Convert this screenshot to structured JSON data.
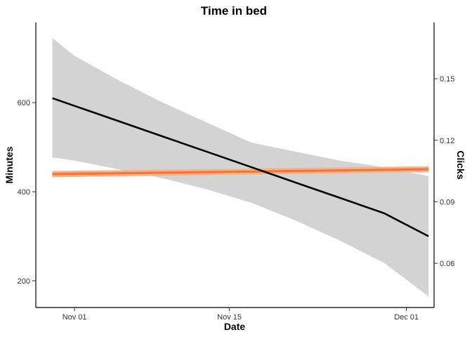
{
  "chart_data": {
    "type": "line",
    "title": "Time in bed",
    "xlabel": "Date",
    "ylabel": "Minutes",
    "y2label": "Clicks",
    "x_ticks": [
      "Nov 01",
      "Nov 15",
      "Dec 01"
    ],
    "x_tick_days": [
      0,
      14,
      30
    ],
    "xlim_days": [
      -3.5,
      32.5
    ],
    "ylim": [
      140,
      780
    ],
    "y_ticks": [
      200,
      400,
      600
    ],
    "y2lim": [
      0.0385,
      0.1774
    ],
    "y2_ticks": [
      0.06,
      0.09,
      0.12,
      0.15
    ],
    "y2_tick_labels": [
      "0.06",
      "0.09",
      "0.12",
      "0.15"
    ],
    "legend": "none",
    "grid": false,
    "series": [
      {
        "axis": "left",
        "color": "#000000",
        "band_color": "#d3d3d3",
        "x_days": [
          -2,
          0,
          4,
          8,
          12,
          16,
          20,
          24,
          28,
          32
        ],
        "fit": [
          610,
          592.8,
          558.3,
          523.9,
          489.4,
          454.9,
          420.5,
          386.0,
          351.6,
          300
        ],
        "ci_low": [
          477,
          470,
          450,
          430,
          405,
          375,
          335,
          290,
          240,
          165
        ],
        "ci_high": [
          745,
          705,
          650,
          600,
          555,
          510,
          490,
          470,
          455,
          435
        ]
      },
      {
        "axis": "right",
        "color": "#f4733b",
        "band_color": "#f7b183",
        "x_days": [
          -2,
          32
        ],
        "fit": [
          0.1035,
          0.1059
        ],
        "ci_low": [
          0.102,
          0.1045
        ],
        "ci_high": [
          0.105,
          0.1073
        ]
      }
    ]
  }
}
